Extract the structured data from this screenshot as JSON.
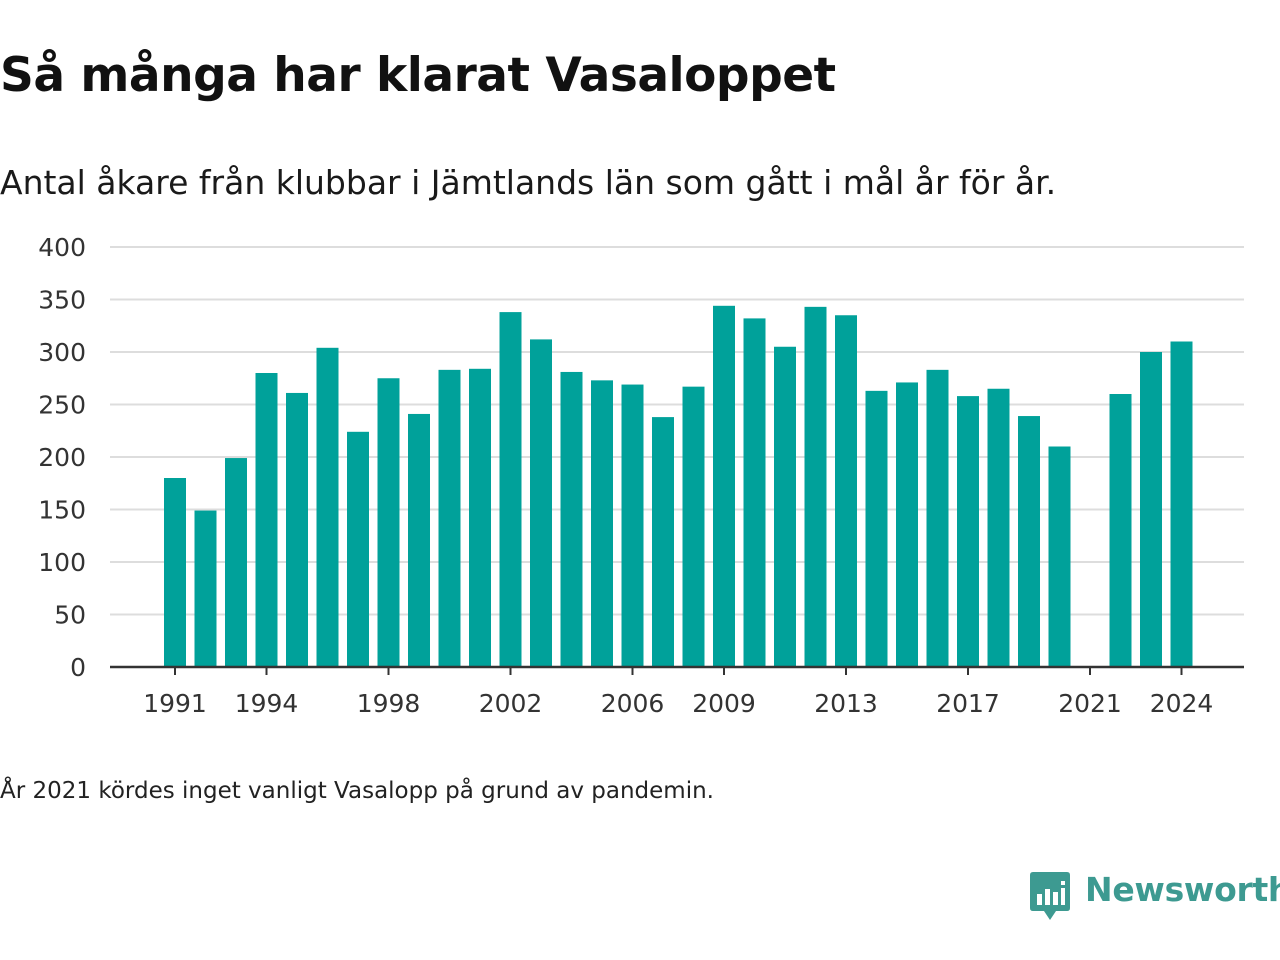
{
  "title": "Så många har klarat Vasaloppet",
  "subtitle": "Antal åkare från klubbar i Jämtlands län som gått i mål år för år.",
  "footnote": "År 2021 kördes inget vanligt Vasalopp på grund av pandemin.",
  "logo": {
    "text": "Newsworthy",
    "icon": "newsworthy-logo-icon"
  },
  "colors": {
    "bar": "#00a19a",
    "grid": "#dddddd",
    "axis": "#333333",
    "logo": "#3d9a91"
  },
  "chart_data": {
    "type": "bar",
    "x": [
      1991,
      1992,
      1993,
      1994,
      1995,
      1996,
      1997,
      1998,
      1999,
      2000,
      2001,
      2002,
      2003,
      2004,
      2005,
      2006,
      2007,
      2008,
      2009,
      2010,
      2011,
      2012,
      2013,
      2014,
      2015,
      2016,
      2017,
      2018,
      2019,
      2020,
      2021,
      2022,
      2023,
      2024
    ],
    "values": [
      180,
      149,
      199,
      280,
      261,
      304,
      224,
      275,
      241,
      283,
      284,
      338,
      312,
      281,
      273,
      269,
      238,
      267,
      344,
      332,
      305,
      343,
      335,
      263,
      271,
      283,
      258,
      265,
      239,
      210,
      null,
      260,
      300,
      310
    ],
    "ylim": [
      0,
      400
    ],
    "yticks": [
      0,
      50,
      100,
      150,
      200,
      250,
      300,
      350,
      400
    ],
    "xtick_labels": [
      1991,
      1994,
      1998,
      2002,
      2006,
      2009,
      2013,
      2017,
      2021,
      2024
    ],
    "grid": true,
    "xlabel": "",
    "ylabel": ""
  }
}
